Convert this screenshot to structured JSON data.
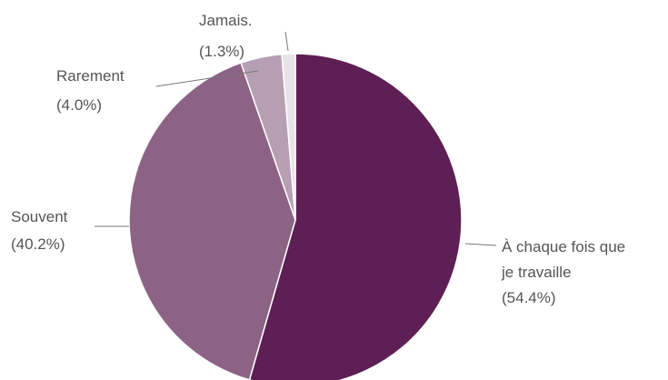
{
  "chart_data": {
    "type": "pie",
    "title": "",
    "start_angle_deg": 0,
    "direction": "clockwise",
    "slices": [
      {
        "label_lines": [
          "À chaque fois que",
          "je travaille"
        ],
        "pct_text": "(54.4%)",
        "value": 54.4,
        "color": "#5e1f54"
      },
      {
        "label_lines": [
          "Souvent"
        ],
        "pct_text": "(40.2%)",
        "value": 40.2,
        "color": "#8d6385"
      },
      {
        "label_lines": [
          "Rarement"
        ],
        "pct_text": "(4.0%)",
        "value": 4.0,
        "color": "#b79fb3"
      },
      {
        "label_lines": [
          "Jamais."
        ],
        "pct_text": "(1.3%)",
        "value": 1.3,
        "color": "#e8e3e7"
      }
    ],
    "slice_border_color": "#ffffff",
    "leader_color": "#777777"
  }
}
